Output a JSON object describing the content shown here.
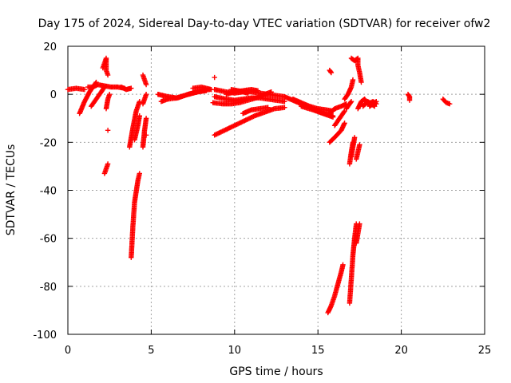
{
  "chart_data": {
    "type": "scatter",
    "title": "Day 175 of 2024, Sidereal Day-to-day VTEC variation (SDTVAR) for receiver ofw2",
    "xlabel": "GPS time / hours",
    "ylabel": "SDTVAR / TECUs",
    "xlim": [
      0,
      25
    ],
    "ylim": [
      -100,
      20
    ],
    "xticks": [
      0,
      5,
      10,
      15,
      20,
      25
    ],
    "yticks": [
      -100,
      -80,
      -60,
      -40,
      -20,
      0,
      20
    ],
    "xtick_labels": [
      "0",
      "5",
      "10",
      "15",
      "20",
      "25"
    ],
    "ytick_labels": [
      "-100",
      "-80",
      "-60",
      "-40",
      "-20",
      "0",
      "20"
    ],
    "grid": true,
    "marker": "+",
    "color": "#ff0000",
    "segments": [
      [
        [
          0.0,
          2.0
        ],
        [
          0.5,
          2.5
        ],
        [
          1.0,
          2.0
        ]
      ],
      [
        [
          0.7,
          -8.0
        ],
        [
          1.0,
          -3.0
        ],
        [
          1.3,
          1.0
        ],
        [
          1.7,
          5.0
        ]
      ],
      [
        [
          1.2,
          3.0
        ],
        [
          1.5,
          3.0
        ],
        [
          1.8,
          4.0
        ],
        [
          2.2,
          3.5
        ],
        [
          2.6,
          3.0
        ],
        [
          3.0,
          3.0
        ],
        [
          3.4,
          2.5
        ]
      ],
      [
        [
          1.4,
          -5.0
        ],
        [
          1.7,
          -2.0
        ],
        [
          2.0,
          1.0
        ],
        [
          2.2,
          3.0
        ]
      ],
      [
        [
          2.1,
          11.0
        ],
        [
          2.2,
          13.0
        ],
        [
          2.3,
          15.0
        ],
        [
          2.3,
          10.0
        ],
        [
          2.4,
          8.0
        ]
      ],
      [
        [
          2.3,
          -6.0
        ],
        [
          2.4,
          -2.0
        ],
        [
          2.5,
          0.0
        ]
      ],
      [
        [
          2.4,
          -15.0
        ]
      ],
      [
        [
          2.2,
          -33.0
        ],
        [
          2.3,
          -31.0
        ],
        [
          2.4,
          -29.0
        ]
      ],
      [
        [
          3.2,
          3.0
        ],
        [
          3.5,
          2.0
        ],
        [
          3.8,
          2.5
        ]
      ],
      [
        [
          3.7,
          -22.0
        ],
        [
          3.9,
          -14.0
        ],
        [
          4.1,
          -7.0
        ],
        [
          4.3,
          -3.0
        ]
      ],
      [
        [
          3.8,
          -68.0
        ],
        [
          3.9,
          -55.0
        ],
        [
          4.0,
          -45.0
        ],
        [
          4.2,
          -36.0
        ],
        [
          4.3,
          -33.0
        ]
      ],
      [
        [
          4.0,
          -19.0
        ],
        [
          4.2,
          -13.0
        ],
        [
          4.3,
          -9.0
        ]
      ],
      [
        [
          4.5,
          -22.0
        ],
        [
          4.6,
          -15.0
        ],
        [
          4.7,
          -10.0
        ]
      ],
      [
        [
          4.5,
          -4.0
        ],
        [
          4.6,
          -2.0
        ],
        [
          4.7,
          0.0
        ]
      ],
      [
        [
          4.5,
          8.0
        ],
        [
          4.6,
          6.0
        ],
        [
          4.7,
          4.0
        ]
      ],
      [
        [
          4.7,
          -17.0
        ]
      ],
      [
        [
          5.4,
          0.0
        ],
        [
          6.0,
          -1.0
        ],
        [
          6.5,
          -1.5
        ],
        [
          7.0,
          -0.5
        ],
        [
          7.5,
          0.5
        ],
        [
          8.0,
          1.5
        ],
        [
          8.5,
          2.0
        ]
      ],
      [
        [
          5.6,
          -3.0
        ],
        [
          6.0,
          -2.0
        ],
        [
          6.6,
          -1.5
        ],
        [
          7.2,
          0.0
        ],
        [
          7.8,
          1.0
        ],
        [
          8.3,
          1.5
        ]
      ],
      [
        [
          7.5,
          2.5
        ],
        [
          8.0,
          3.0
        ],
        [
          8.6,
          2.0
        ]
      ],
      [
        [
          8.8,
          7.0
        ]
      ],
      [
        [
          8.8,
          2.0
        ],
        [
          9.5,
          1.0
        ],
        [
          10.0,
          0.5
        ],
        [
          10.5,
          1.0
        ],
        [
          11.0,
          1.0
        ],
        [
          11.5,
          0.5
        ],
        [
          12.0,
          0.0
        ],
        [
          12.5,
          -0.5
        ],
        [
          13.0,
          -1.0
        ],
        [
          13.5,
          -2.5
        ],
        [
          14.0,
          -4.0
        ],
        [
          14.5,
          -5.5
        ],
        [
          15.0,
          -7.0
        ],
        [
          15.5,
          -8.5
        ],
        [
          15.9,
          -9.5
        ]
      ],
      [
        [
          8.8,
          -1.0
        ],
        [
          9.5,
          -2.0
        ],
        [
          10.0,
          -2.5
        ],
        [
          10.5,
          -2.0
        ],
        [
          11.0,
          -1.5
        ],
        [
          11.5,
          -1.5
        ],
        [
          12.0,
          -2.0
        ],
        [
          12.5,
          -2.5
        ],
        [
          13.0,
          -3.0
        ]
      ],
      [
        [
          8.7,
          -3.5
        ],
        [
          9.3,
          -4.0
        ],
        [
          9.8,
          -4.0
        ],
        [
          10.3,
          -3.5
        ],
        [
          10.8,
          -2.5
        ],
        [
          11.3,
          -1.5
        ],
        [
          11.8,
          0.0
        ],
        [
          12.2,
          1.0
        ]
      ],
      [
        [
          8.8,
          -17.0
        ],
        [
          9.4,
          -15.0
        ],
        [
          10.0,
          -13.0
        ],
        [
          10.6,
          -11.0
        ],
        [
          11.2,
          -9.0
        ],
        [
          11.8,
          -7.5
        ],
        [
          12.4,
          -6.0
        ],
        [
          13.0,
          -5.5
        ]
      ],
      [
        [
          9.5,
          0.0
        ],
        [
          10.0,
          1.0
        ],
        [
          10.5,
          1.5
        ],
        [
          11.0,
          2.0
        ],
        [
          11.4,
          1.5
        ]
      ],
      [
        [
          9.8,
          2.0
        ],
        [
          10.2,
          1.5
        ],
        [
          10.8,
          0.5
        ]
      ],
      [
        [
          10.5,
          -8.0
        ],
        [
          11.0,
          -6.5
        ],
        [
          11.5,
          -6.0
        ],
        [
          12.0,
          -5.5
        ]
      ],
      [
        [
          13.5,
          -2.0
        ],
        [
          14.0,
          -3.5
        ],
        [
          14.5,
          -5.0
        ],
        [
          15.0,
          -6.0
        ],
        [
          15.5,
          -6.5
        ],
        [
          15.9,
          -7.0
        ]
      ],
      [
        [
          14.0,
          -5.0
        ],
        [
          14.7,
          -6.5
        ],
        [
          15.3,
          -8.0
        ],
        [
          15.9,
          -9.0
        ]
      ],
      [
        [
          15.6,
          -91.0
        ],
        [
          15.8,
          -88.0
        ],
        [
          16.0,
          -84.0
        ],
        [
          16.2,
          -79.0
        ],
        [
          16.4,
          -74.0
        ],
        [
          16.5,
          -71.0
        ]
      ],
      [
        [
          15.7,
          -20.0
        ],
        [
          16.0,
          -18.0
        ],
        [
          16.4,
          -15.0
        ],
        [
          16.6,
          -12.0
        ]
      ],
      [
        [
          15.7,
          10.0
        ],
        [
          15.8,
          9.0
        ]
      ],
      [
        [
          15.7,
          -8.0
        ],
        [
          16.0,
          -6.0
        ],
        [
          16.4,
          -5.0
        ],
        [
          16.7,
          -4.0
        ]
      ],
      [
        [
          16.0,
          -13.0
        ],
        [
          16.3,
          -10.0
        ],
        [
          16.6,
          -7.0
        ]
      ],
      [
        [
          16.6,
          -2.0
        ],
        [
          16.8,
          0.0
        ],
        [
          17.0,
          3.0
        ],
        [
          17.1,
          6.0
        ]
      ],
      [
        [
          16.7,
          -6.0
        ],
        [
          16.9,
          -4.0
        ],
        [
          17.0,
          -3.0
        ]
      ],
      [
        [
          16.9,
          -29.0
        ],
        [
          17.0,
          -24.0
        ],
        [
          17.1,
          -20.0
        ]
      ],
      [
        [
          16.9,
          -87.0
        ],
        [
          17.0,
          -77.0
        ],
        [
          17.1,
          -67.0
        ],
        [
          17.2,
          -60.0
        ],
        [
          17.3,
          -54.0
        ]
      ],
      [
        [
          17.0,
          -26.0
        ],
        [
          17.1,
          -22.0
        ],
        [
          17.2,
          -18.0
        ]
      ],
      [
        [
          17.0,
          15.0
        ],
        [
          17.2,
          14.0
        ],
        [
          17.4,
          15.0
        ],
        [
          17.4,
          12.0
        ],
        [
          17.5,
          9.0
        ],
        [
          17.6,
          5.0
        ]
      ],
      [
        [
          17.3,
          -62.0
        ],
        [
          17.4,
          -58.0
        ],
        [
          17.5,
          -54.0
        ]
      ],
      [
        [
          17.3,
          -27.0
        ],
        [
          17.4,
          -24.0
        ],
        [
          17.5,
          -21.0
        ]
      ],
      [
        [
          17.4,
          -6.0
        ],
        [
          17.6,
          -3.0
        ],
        [
          17.8,
          -2.0
        ],
        [
          18.0,
          -4.0
        ],
        [
          18.3,
          -3.0
        ],
        [
          18.5,
          -4.0
        ]
      ],
      [
        [
          17.7,
          -5.0
        ],
        [
          18.0,
          -3.0
        ],
        [
          18.4,
          -5.0
        ]
      ],
      [
        [
          18.1,
          -5.0
        ],
        [
          18.3,
          -4.0
        ],
        [
          18.5,
          -3.0
        ]
      ],
      [
        [
          20.4,
          0.0
        ],
        [
          20.5,
          -1.0
        ],
        [
          20.5,
          -2.5
        ]
      ],
      [
        [
          22.5,
          -2.0
        ],
        [
          22.7,
          -3.5
        ],
        [
          22.9,
          -4.0
        ]
      ]
    ]
  }
}
